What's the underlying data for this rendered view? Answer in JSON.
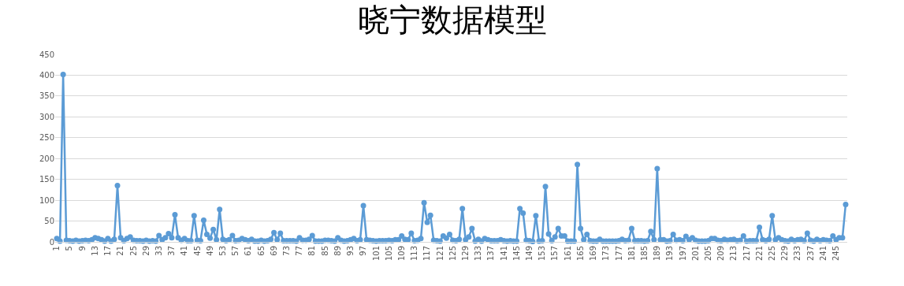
{
  "chart_data": {
    "type": "line",
    "title": "晓宁数据模型",
    "categories": [
      "1",
      null,
      null,
      null,
      "5",
      null,
      null,
      null,
      "9",
      null,
      null,
      null,
      "13",
      null,
      null,
      null,
      "17",
      null,
      null,
      null,
      "21",
      null,
      null,
      null,
      "25",
      null,
      null,
      null,
      "29",
      null,
      null,
      null,
      "33",
      null,
      null,
      null,
      "37",
      null,
      null,
      null,
      "41",
      null,
      null,
      null,
      "45",
      null,
      null,
      null,
      "49",
      null,
      null,
      null,
      "53",
      null,
      null,
      null,
      "57",
      null,
      null,
      null,
      "61",
      null,
      null,
      null,
      "65",
      null,
      null,
      null,
      "69",
      null,
      null,
      null,
      "73",
      null,
      null,
      null,
      "77",
      null,
      null,
      null,
      "81",
      null,
      null,
      null,
      "85",
      null,
      null,
      null,
      "89",
      null,
      null,
      null,
      "93",
      null,
      null,
      null,
      "97",
      null,
      null,
      null,
      "101",
      null,
      null,
      null,
      "105",
      null,
      null,
      null,
      "109",
      null,
      null,
      null,
      "113",
      null,
      null,
      null,
      "117",
      null,
      null,
      null,
      "121",
      null,
      null,
      null,
      "125",
      null,
      null,
      null,
      "129",
      null,
      null,
      null,
      "133",
      null,
      null,
      null,
      "137",
      null,
      null,
      null,
      "141",
      null,
      null,
      null,
      "145",
      null,
      null,
      null,
      "149",
      null,
      null,
      null,
      "153",
      null,
      null,
      null,
      "157",
      null,
      null,
      null,
      "161",
      null,
      null,
      null,
      "165",
      null,
      null,
      null,
      "169",
      null,
      null,
      null,
      "173",
      null,
      null,
      null,
      "177",
      null,
      null,
      null,
      "181",
      null,
      null,
      null,
      "185",
      null,
      null,
      null,
      "189",
      null,
      null,
      null,
      "193",
      null,
      null,
      null,
      "197",
      null,
      null,
      null,
      "201",
      null,
      null,
      null,
      "205",
      null,
      null,
      null,
      "209",
      null,
      null,
      null,
      "213",
      null,
      null,
      null,
      "217",
      null,
      null,
      null,
      "221",
      null,
      null,
      null,
      "225",
      null,
      null,
      null,
      "229",
      null,
      null,
      null,
      "233",
      null,
      null,
      null,
      "237",
      null,
      null,
      null,
      "241",
      null,
      null,
      null,
      "245",
      null,
      null,
      null
    ],
    "series": [
      {
        "color": "#5b9bd5",
        "values": [
          8,
          2,
          402,
          4,
          3,
          2,
          4,
          2,
          3,
          4,
          3,
          5,
          10,
          8,
          5,
          2,
          8,
          2,
          6,
          135,
          10,
          3,
          8,
          12,
          4,
          3,
          3,
          2,
          4,
          2,
          3,
          2,
          15,
          5,
          10,
          20,
          10,
          65,
          10,
          4,
          8,
          3,
          3,
          63,
          4,
          3,
          52,
          18,
          9,
          30,
          5,
          78,
          6,
          3,
          5,
          15,
          3,
          4,
          8,
          5,
          3,
          6,
          2,
          2,
          4,
          2,
          3,
          6,
          22,
          5,
          21,
          3,
          3,
          3,
          3,
          2,
          10,
          4,
          4,
          6,
          15,
          2,
          2,
          2,
          4,
          4,
          3,
          2,
          10,
          4,
          2,
          3,
          5,
          8,
          3,
          5,
          87,
          5,
          4,
          3,
          2,
          3,
          3,
          3,
          4,
          3,
          5,
          5,
          14,
          6,
          5,
          21,
          3,
          4,
          8,
          94,
          47,
          64,
          4,
          3,
          2,
          14,
          9,
          18,
          4,
          3,
          6,
          80,
          5,
          12,
          32,
          2,
          6,
          2,
          8,
          5,
          3,
          3,
          3,
          5,
          3,
          2,
          3,
          2,
          2,
          80,
          69,
          4,
          3,
          1,
          63,
          2,
          3,
          133,
          19,
          3,
          12,
          32,
          14,
          14,
          2,
          2,
          2,
          186,
          32,
          5,
          18,
          3,
          2,
          2,
          6,
          2,
          2,
          2,
          2,
          2,
          3,
          6,
          3,
          4,
          32,
          3,
          3,
          3,
          2,
          3,
          25,
          5,
          176,
          5,
          5,
          2,
          3,
          18,
          4,
          5,
          3,
          13,
          5,
          10,
          4,
          2,
          2,
          2,
          3,
          8,
          8,
          4,
          3,
          6,
          4,
          5,
          6,
          3,
          4,
          14,
          2,
          3,
          3,
          3,
          35,
          5,
          3,
          6,
          63,
          5,
          10,
          5,
          3,
          2,
          6,
          3,
          5,
          6,
          3,
          21,
          4,
          2,
          6,
          3,
          5,
          4,
          3,
          14,
          5,
          10,
          10,
          90
        ]
      }
    ],
    "ylim": [
      0,
      450
    ],
    "yticks": [
      0,
      50,
      100,
      150,
      200,
      250,
      300,
      350,
      400,
      450
    ],
    "grid": "y",
    "marker": "circle",
    "line_style": "solid"
  }
}
